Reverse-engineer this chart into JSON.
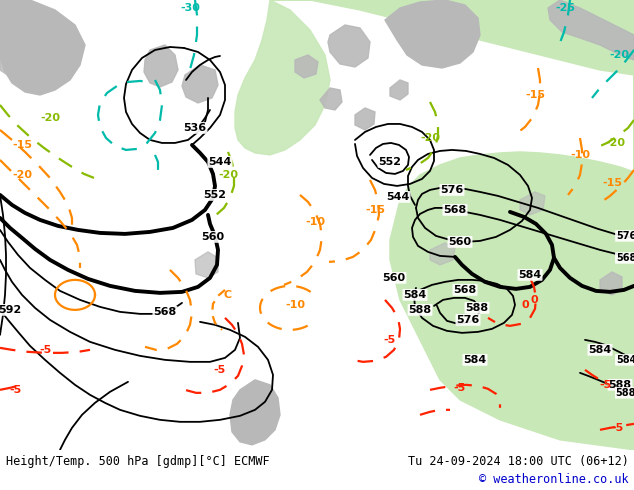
{
  "title_left": "Height/Temp. 500 hPa [gdmp][°C] ECMWF",
  "title_right": "Tu 24-09-2024 18:00 UTC (06+12)",
  "copyright": "© weatheronline.co.uk",
  "bg_color": "#e0e0e0",
  "map_bg_color": "#e0e0e0",
  "green_area_color": "#c8e8b8",
  "gray_land_color": "#b8b8b8",
  "title_color": "#000000",
  "copyright_color": "#0000cc",
  "bottom_bar_color": "#ffffff",
  "contour_color": "#000000",
  "temp_cold_color": "#00bbaa",
  "temp_warm_orange": "#ff8800",
  "temp_warm_red": "#ff2200",
  "temp_green_color": "#88bb00",
  "figsize": [
    6.34,
    4.9
  ],
  "dpi": 100
}
